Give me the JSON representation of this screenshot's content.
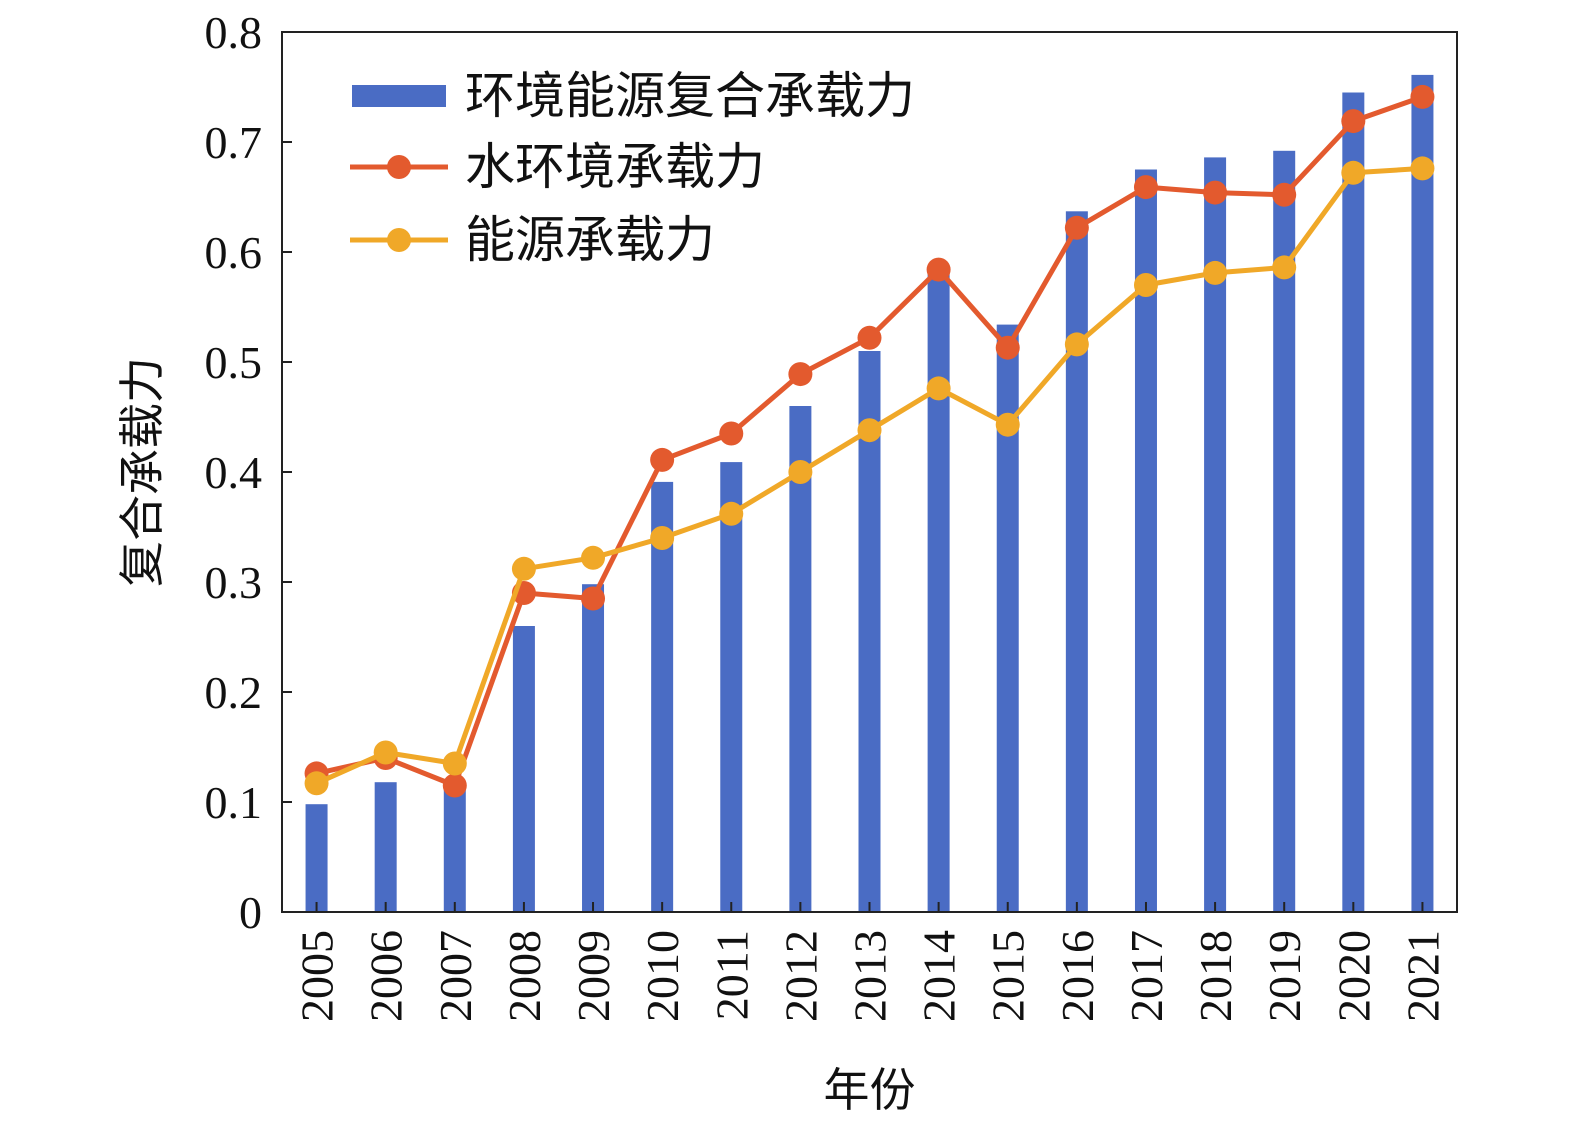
{
  "chart_data": {
    "type": "bar",
    "title": "",
    "xlabel": "年份",
    "ylabel": "复合承载力",
    "ylim": [
      0,
      0.8
    ],
    "yticks": [
      0,
      0.1,
      0.2,
      0.3,
      0.4,
      0.5,
      0.6,
      0.7,
      0.8
    ],
    "ytick_labels": [
      "0",
      "0.1",
      "0.2",
      "0.3",
      "0.4",
      "0.5",
      "0.6",
      "0.7",
      "0.8"
    ],
    "categories": [
      "2005",
      "2006",
      "2007",
      "2008",
      "2009",
      "2010",
      "2011",
      "2012",
      "2013",
      "2014",
      "2015",
      "2016",
      "2017",
      "2018",
      "2019",
      "2020",
      "2021"
    ],
    "grid": false,
    "legend_position": "top-left",
    "series": [
      {
        "name": "环境能源复合承载力",
        "kind": "bar",
        "color": "#4a6cc4",
        "values": [
          0.098,
          0.118,
          0.115,
          0.26,
          0.298,
          0.391,
          0.409,
          0.46,
          0.51,
          0.58,
          0.534,
          0.637,
          0.675,
          0.686,
          0.692,
          0.745,
          0.761
        ]
      },
      {
        "name": "水环境承载力",
        "kind": "line",
        "color": "#e35a2e",
        "values": [
          0.126,
          0.14,
          0.115,
          0.29,
          0.285,
          0.411,
          0.435,
          0.489,
          0.522,
          0.584,
          0.513,
          0.622,
          0.659,
          0.654,
          0.652,
          0.719,
          0.741
        ]
      },
      {
        "name": "能源承载力",
        "kind": "line",
        "color": "#f0a828",
        "values": [
          0.117,
          0.145,
          0.135,
          0.312,
          0.322,
          0.34,
          0.362,
          0.4,
          0.438,
          0.476,
          0.443,
          0.516,
          0.57,
          0.581,
          0.586,
          0.672,
          0.676
        ]
      }
    ]
  }
}
